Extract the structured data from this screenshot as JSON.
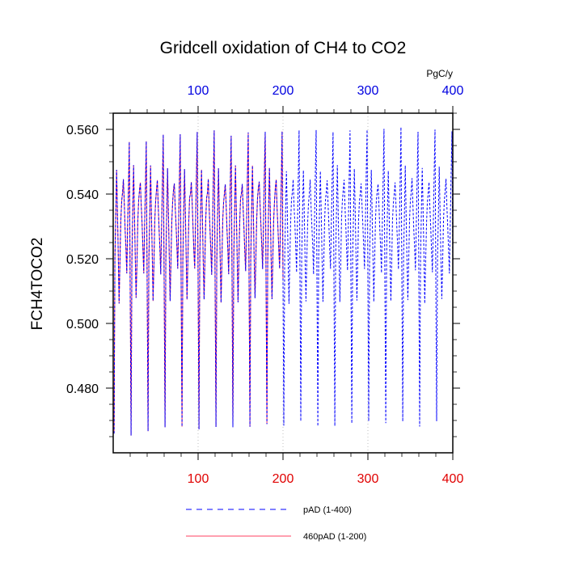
{
  "chart_data": {
    "type": "line",
    "title": "Gridcell oxidation of CH4 to CO2",
    "ylabel": "FCH4TOCO2",
    "units_label": "PgC/y",
    "xlim": [
      0,
      400
    ],
    "ylim": [
      0.46,
      0.565
    ],
    "x_ticks_bottom": [
      "100",
      "200",
      "300",
      "400"
    ],
    "x_ticks_top": [
      "100",
      "200",
      "300",
      "400"
    ],
    "y_ticks": [
      "0.480",
      "0.500",
      "0.520",
      "0.540",
      "0.560"
    ],
    "y_tick_values": [
      0.48,
      0.5,
      0.52,
      0.54,
      0.56
    ],
    "x_tick_values": [
      100,
      200,
      300,
      400
    ],
    "grid": "vertical dotted",
    "colors": {
      "bottom_axis": "#e00000",
      "top_axis": "#0000e0",
      "series_pad": "#0000ff",
      "series_460": "#ff4060"
    },
    "series": [
      {
        "name": "pAD (1-400)",
        "style": "dashed",
        "color": "#0000ff",
        "x_range": [
          1,
          400
        ]
      },
      {
        "name": "460pAD (1-200)",
        "style": "solid",
        "color": "#ff4060",
        "x_range": [
          1,
          200
        ]
      }
    ],
    "cycle": {
      "period_years": 20,
      "minima": [
        0.466,
        0.466,
        0.467,
        0.467,
        0.468,
        0.468,
        0.468,
        0.468,
        0.468,
        0.469,
        0.469,
        0.469,
        0.469,
        0.469,
        0.469,
        0.469,
        0.469,
        0.469,
        0.469,
        0.469
      ],
      "maxima": [
        0.556,
        0.557,
        0.558,
        0.558,
        0.559,
        0.559,
        0.559,
        0.559,
        0.559,
        0.559,
        0.56,
        0.56,
        0.56,
        0.56,
        0.56,
        0.56,
        0.56,
        0.56,
        0.56,
        0.56
      ],
      "mid_low": 0.507,
      "mid_high": 0.548,
      "mid_val": 0.52
    }
  }
}
